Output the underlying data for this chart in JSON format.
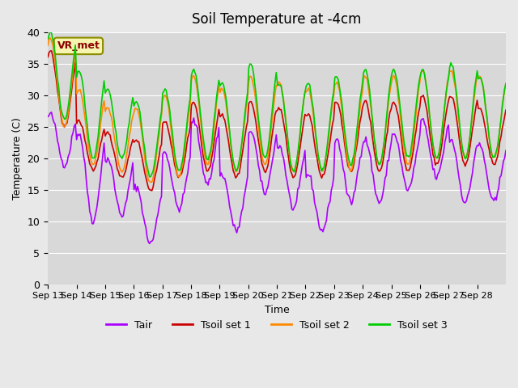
{
  "title": "Soil Temperature at -4cm",
  "xlabel": "Time",
  "ylabel": "Temperature (C)",
  "ylim": [
    0,
    40
  ],
  "background_color": "#e8e8e8",
  "plot_bg_color": "#d8d8d8",
  "grid_color": "#ffffff",
  "annotation_text": "VR_met",
  "annotation_bg": "#f5f5b0",
  "annotation_border": "#8b8b00",
  "annotation_text_color": "#8b0000",
  "colors": {
    "Tair": "#aa00ff",
    "Tsoil1": "#cc0000",
    "Tsoil2": "#ff8800",
    "Tsoil3": "#00cc00"
  },
  "legend_labels": [
    "Tair",
    "Tsoil set 1",
    "Tsoil set 2",
    "Tsoil set 3"
  ],
  "xtick_labels": [
    "Sep 13",
    "Sep 14",
    "Sep 15",
    "Sep 16",
    "Sep 17",
    "Sep 18",
    "Sep 19",
    "Sep 20",
    "Sep 21",
    "Sep 22",
    "Sep 23",
    "Sep 24",
    "Sep 25",
    "Sep 26",
    "Sep 27",
    "Sep 28"
  ],
  "ytick_values": [
    0,
    5,
    10,
    15,
    20,
    25,
    30,
    35,
    40
  ],
  "n_days": 16,
  "tair_amplitude": [
    8,
    14,
    9,
    9,
    9,
    10,
    9,
    10,
    10,
    9,
    10,
    10,
    9,
    9,
    10,
    9
  ],
  "tair_min": [
    19,
    10,
    11,
    6.5,
    12,
    16,
    8.5,
    14.5,
    12,
    8.5,
    13,
    13,
    15,
    17,
    13,
    13
  ],
  "ts1_amplitude": [
    12,
    8,
    7,
    8,
    9,
    11,
    10,
    11,
    11,
    10,
    11,
    11,
    11,
    11,
    11,
    9
  ],
  "ts1_min": [
    25,
    18,
    17,
    15,
    17,
    18,
    17,
    18,
    17,
    17,
    18,
    18,
    18,
    19,
    19,
    19
  ],
  "ts2_amplitude": [
    14,
    12,
    10,
    12,
    13,
    14,
    13,
    14,
    14,
    13,
    14,
    14,
    14,
    14,
    14,
    13
  ],
  "ts2_min": [
    25,
    19,
    18,
    16,
    17,
    19,
    18,
    19,
    18,
    18,
    18,
    19,
    19,
    20,
    20,
    20
  ],
  "ts3_amplitude": [
    14,
    14,
    11,
    12,
    13,
    14,
    14,
    15,
    14,
    14,
    14,
    15,
    14,
    14,
    15,
    13
  ],
  "ts3_min": [
    26,
    20,
    20,
    17,
    18,
    20,
    18,
    20,
    18,
    18,
    19,
    19,
    20,
    20,
    20,
    20
  ]
}
